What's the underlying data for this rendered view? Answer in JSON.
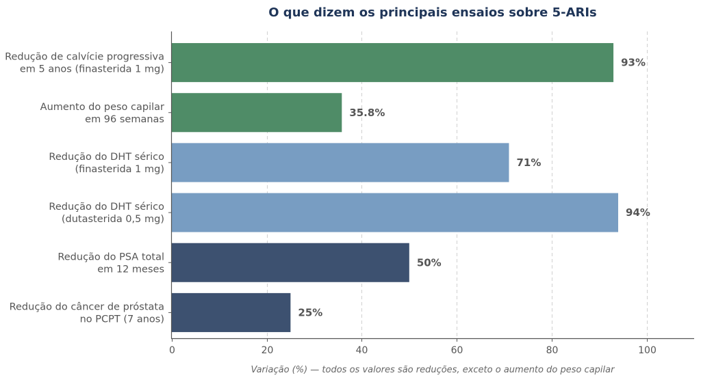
{
  "chart_data": {
    "type": "bar",
    "orientation": "horizontal",
    "title": "O que dizem os principais ensaios sobre 5-ARIs",
    "xlabel": "Variação (%) — todos os valores são reduções, exceto o aumento do peso capilar",
    "xlim": [
      0,
      110
    ],
    "xticks": [
      0,
      20,
      40,
      60,
      80,
      100
    ],
    "grid": true,
    "categories": [
      [
        "Redução de calvície progressiva",
        "em 5 anos (finasterida 1 mg)"
      ],
      [
        "Aumento do peso capilar",
        "em 96 semanas"
      ],
      [
        "Redução do DHT sérico",
        "(finasterida 1 mg)"
      ],
      [
        "Redução do DHT sérico",
        "(dutasterida 0,5 mg)"
      ],
      [
        "Redução do PSA total",
        "em 12 meses"
      ],
      [
        "Redução do câncer de próstata",
        "no PCPT (7 anos)"
      ]
    ],
    "values": [
      93,
      35.8,
      71,
      94,
      50,
      25
    ],
    "value_labels": [
      "93%",
      "35.8%",
      "71%",
      "94%",
      "50%",
      "25%"
    ],
    "colors": [
      "#4f8c67",
      "#4f8c67",
      "#789dc2",
      "#789dc2",
      "#3d5170",
      "#3d5170"
    ]
  }
}
